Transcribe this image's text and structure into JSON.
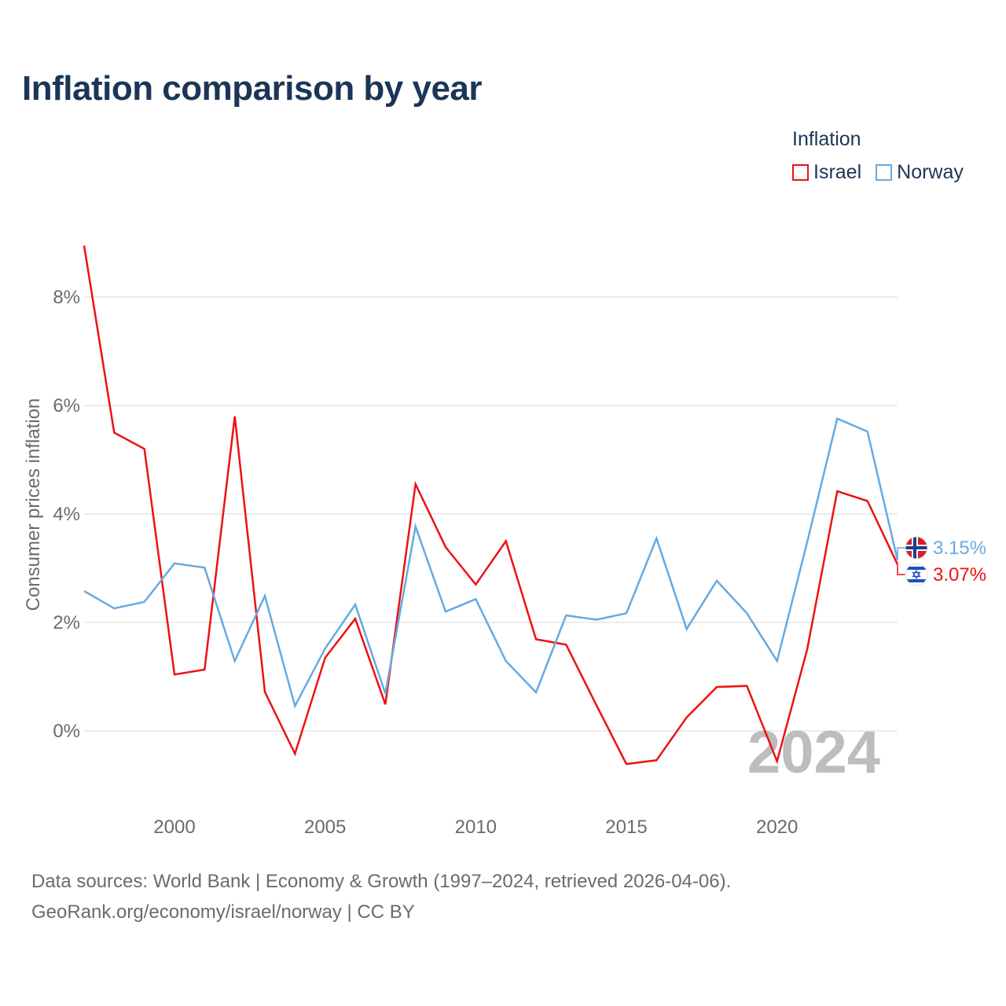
{
  "title": "Inflation comparison by year",
  "legend": {
    "title": "Inflation",
    "items": [
      {
        "label": "Israel",
        "color": "#ee1111"
      },
      {
        "label": "Norway",
        "color": "#66aae2"
      }
    ]
  },
  "footer": {
    "line1": "Data sources: World Bank | Economy & Growth (1997–2024, retrieved 2026-04-06).",
    "line2": "GeoRank.org/economy/israel/norway | CC BY"
  },
  "chart_data": {
    "type": "line",
    "title": "Inflation comparison by year",
    "xlabel": "",
    "ylabel": "Consumer prices inflation",
    "xlim": [
      1997,
      2024
    ],
    "ylim": [
      -1.25,
      8.5
    ],
    "x_ticks": [
      2000,
      2005,
      2010,
      2015,
      2020
    ],
    "x_tick_labels": [
      "2000",
      "2005",
      "2010",
      "2015",
      "2020"
    ],
    "y_ticks": [
      0,
      2,
      4,
      6,
      8
    ],
    "y_tick_labels": [
      "0%",
      "2%",
      "4%",
      "6%",
      "8%"
    ],
    "grid": true,
    "year_watermark": "2024",
    "x": [
      1997,
      1998,
      1999,
      2000,
      2001,
      2002,
      2003,
      2004,
      2005,
      2006,
      2007,
      2008,
      2009,
      2010,
      2011,
      2012,
      2013,
      2014,
      2015,
      2016,
      2017,
      2018,
      2019,
      2020,
      2021,
      2022,
      2023,
      2024
    ],
    "series": [
      {
        "name": "Israel",
        "color": "#ee1111",
        "end_label": "3.07%",
        "flag": "israel-flag-icon",
        "values": [
          8.95,
          5.5,
          5.2,
          1.04,
          1.13,
          5.8,
          0.72,
          -0.42,
          1.35,
          2.07,
          0.49,
          4.55,
          3.39,
          2.7,
          3.5,
          1.69,
          1.59,
          0.48,
          -0.61,
          -0.54,
          0.25,
          0.81,
          0.83,
          -0.56,
          1.5,
          4.42,
          4.24,
          3.07
        ]
      },
      {
        "name": "Norway",
        "color": "#66aae2",
        "end_label": "3.15%",
        "flag": "norway-flag-icon",
        "values": [
          2.58,
          2.26,
          2.38,
          3.09,
          3.01,
          1.29,
          2.49,
          0.46,
          1.52,
          2.33,
          0.69,
          3.77,
          2.2,
          2.43,
          1.29,
          0.71,
          2.13,
          2.05,
          2.17,
          3.55,
          1.88,
          2.77,
          2.17,
          1.29,
          3.48,
          5.76,
          5.52,
          3.15
        ]
      }
    ]
  }
}
